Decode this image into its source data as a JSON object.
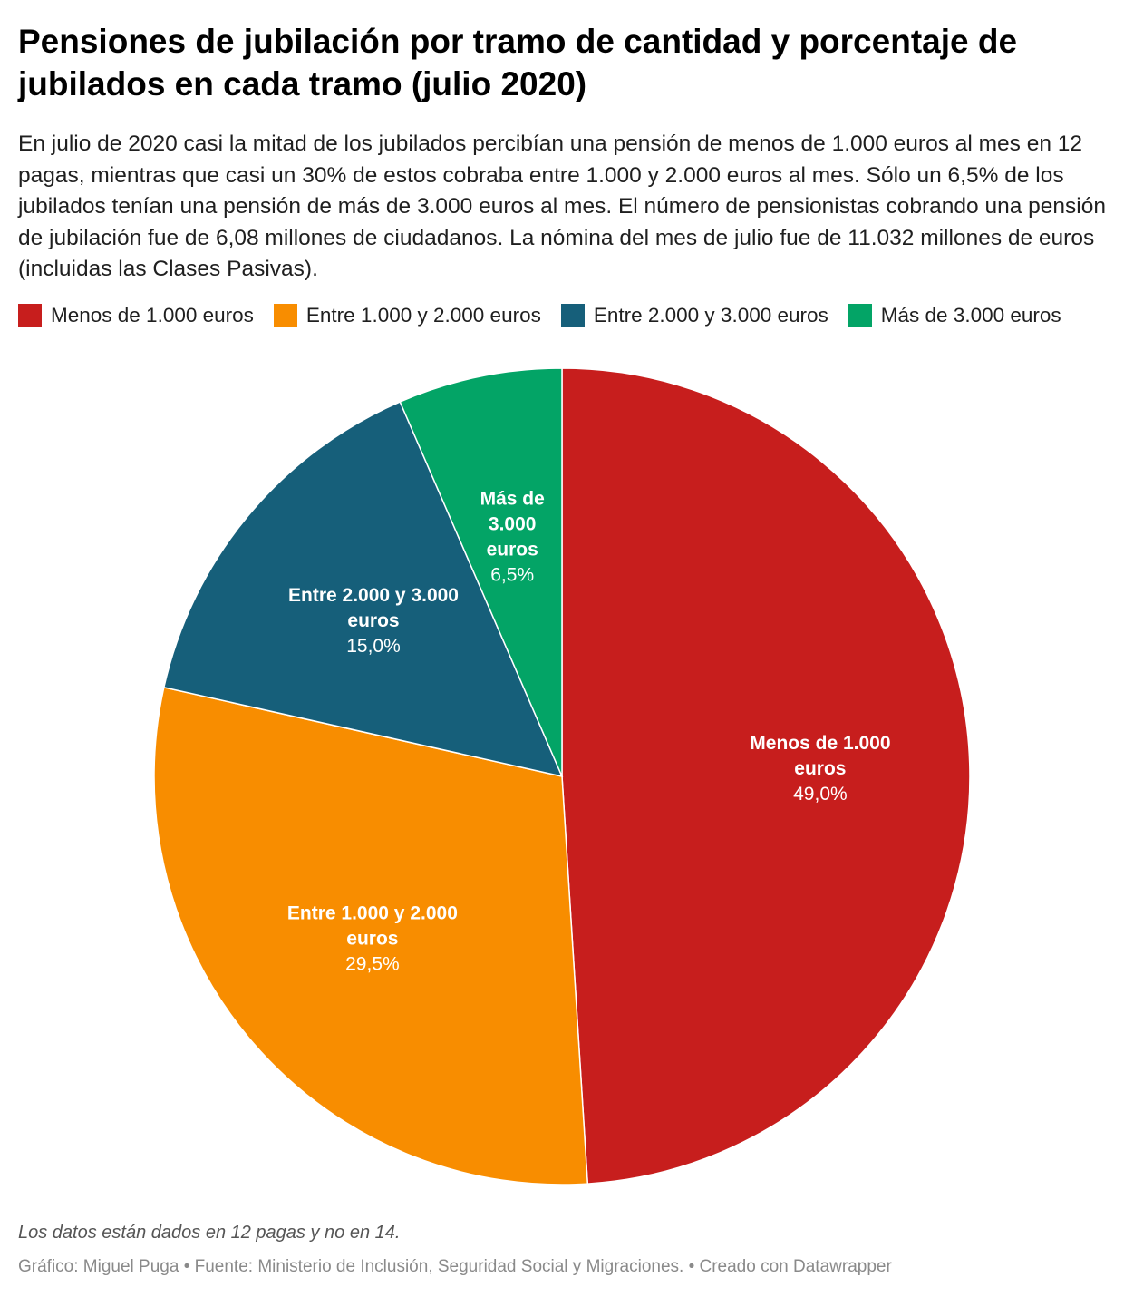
{
  "title": "Pensiones de jubilación por tramo de cantidad y porcentaje de jubilados en cada tramo (julio 2020)",
  "subtitle": "En julio de 2020 casi la mitad de los jubilados percibían una pensión de menos de 1.000 euros al mes en 12 pagas, mientras que casi un 30% de estos cobraba entre 1.000 y 2.000 euros al mes. Sólo un 6,5% de los jubilados tenían una pensión de más de 3.000 euros al mes. El número de pensionistas cobrando una pensión de jubilación fue de 6,08 millones de ciudadanos. La nómina del mes de julio fue de 11.032 millones de euros (incluidas las Clases Pasivas).",
  "legend": [
    {
      "label": "Menos de 1.000 euros",
      "color": "#c71e1d"
    },
    {
      "label": "Entre 1.000 y 2.000 euros",
      "color": "#f88d00"
    },
    {
      "label": "Entre 2.000 y 3.000 euros",
      "color": "#165f7a"
    },
    {
      "label": "Más de 3.000 euros",
      "color": "#03a466"
    }
  ],
  "chart_data": {
    "type": "pie",
    "start": "12 o'clock, clockwise",
    "slices": [
      {
        "label": "Menos de 1.000 euros",
        "label_lines": [
          "Menos de 1.000",
          "euros"
        ],
        "value": 49.0,
        "value_label": "49,0%",
        "color": "#c71e1d"
      },
      {
        "label": "Entre 1.000 y 2.000 euros",
        "label_lines": [
          "Entre 1.000 y 2.000",
          "euros"
        ],
        "value": 29.5,
        "value_label": "29,5%",
        "color": "#f88d00"
      },
      {
        "label": "Entre 2.000 y 3.000 euros",
        "label_lines": [
          "Entre 2.000 y 3.000",
          "euros"
        ],
        "value": 15.0,
        "value_label": "15,0%",
        "color": "#165f7a"
      },
      {
        "label": "Más de 3.000 euros",
        "label_lines": [
          "Más de",
          "3.000",
          "euros"
        ],
        "value": 6.5,
        "value_label": "6,5%",
        "color": "#03a466"
      }
    ]
  },
  "note": "Los datos están dados en 12 pagas y no en 14.",
  "source": "Gráfico: Miguel Puga • Fuente: Ministerio de Inclusión, Seguridad Social y Migraciones. • Creado con Datawrapper"
}
